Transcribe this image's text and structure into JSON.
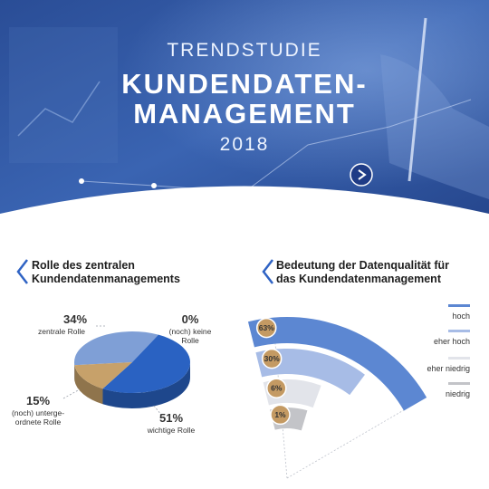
{
  "header": {
    "kicker": "TRENDSTUDIE",
    "title_line1": "KUNDENDATEN-",
    "title_line2": "MANAGEMENT",
    "year": "2018"
  },
  "colors": {
    "hero_dark": "#1f3f86",
    "hero_light": "#5d85c6",
    "pie_important": "#2a62c2",
    "pie_central": "#7f9fd6",
    "pie_subordinate": "#c7a16a",
    "ring_hoch": "#5c87d2",
    "ring_eher_hoch": "#a7bce6",
    "ring_eher_niedrig": "#e2e4ea",
    "ring_niedrig": "#c3c4c8",
    "badge": "#c49a63"
  },
  "chart_data": [
    {
      "type": "pie",
      "title_line1": "Rolle des zentralen",
      "title_line2": "Kundendatenmanagements",
      "slices": [
        {
          "pct": "34%",
          "value": 34,
          "label_line1": "zentrale Rolle",
          "label_line2": ""
        },
        {
          "pct": "0%",
          "value": 0,
          "label_line1": "(noch) keine",
          "label_line2": "Rolle"
        },
        {
          "pct": "51%",
          "value": 51,
          "label_line1": "wichtige Rolle",
          "label_line2": ""
        },
        {
          "pct": "15%",
          "value": 15,
          "label_line1": "(noch) unterge-",
          "label_line2": "ordnete Rolle"
        }
      ]
    },
    {
      "type": "bar",
      "title_line1": "Bedeutung der Datenqualität für",
      "title_line2": "das Kundendatenmanagement",
      "categories": [
        "hoch",
        "eher hoch",
        "eher niedrig",
        "niedrig"
      ],
      "values": [
        63,
        30,
        6,
        1
      ],
      "value_labels": [
        "63%",
        "30%",
        "6%",
        "1%"
      ]
    }
  ]
}
